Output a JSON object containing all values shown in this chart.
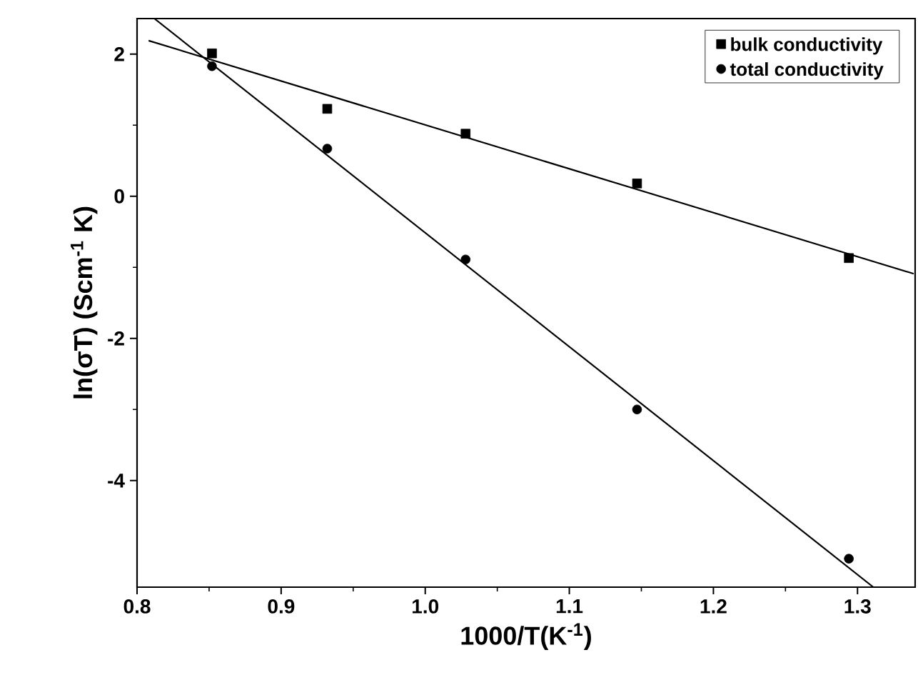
{
  "chart_data": {
    "type": "scatter",
    "xlabel": "1000/T(K$^{-1}$)",
    "ylabel": "ln(σT) (Scm$^{-1}$ K)",
    "x": [
      0.852,
      0.932,
      1.028,
      1.147,
      1.294
    ],
    "series": [
      {
        "name": "bulk conductivity",
        "color": "#000000",
        "marker": "square",
        "values": [
          2.01,
          1.23,
          0.88,
          0.18,
          -0.87
        ]
      },
      {
        "name": "total conductivity",
        "color": "#000000",
        "marker": "circle",
        "values": [
          1.83,
          0.67,
          -0.89,
          -3.0,
          -5.1
        ]
      },
      {
        "type": "line",
        "color": "#000000",
        "marker": "none",
        "x": [
          0.808,
          1.339
        ],
        "values": [
          2.19,
          -1.09
        ]
      },
      {
        "type": "line",
        "color": "#000000",
        "marker": "none",
        "x": [
          0.812,
          1.311
        ],
        "values": [
          2.5,
          -5.5
        ]
      }
    ],
    "xlim": [
      0.8,
      1.34
    ],
    "ylim": [
      -5.5,
      2.5
    ],
    "xticks": [
      0.8,
      0.9,
      {
        "value": 1.0,
        "label": "1.0"
      },
      1.1,
      1.2,
      1.3
    ],
    "yticks": [
      {
        "value": -4,
        "label": "-4"
      },
      {
        "value": -2,
        "label": "-2"
      },
      0,
      2
    ],
    "legend": "top right",
    "grid": false
  }
}
